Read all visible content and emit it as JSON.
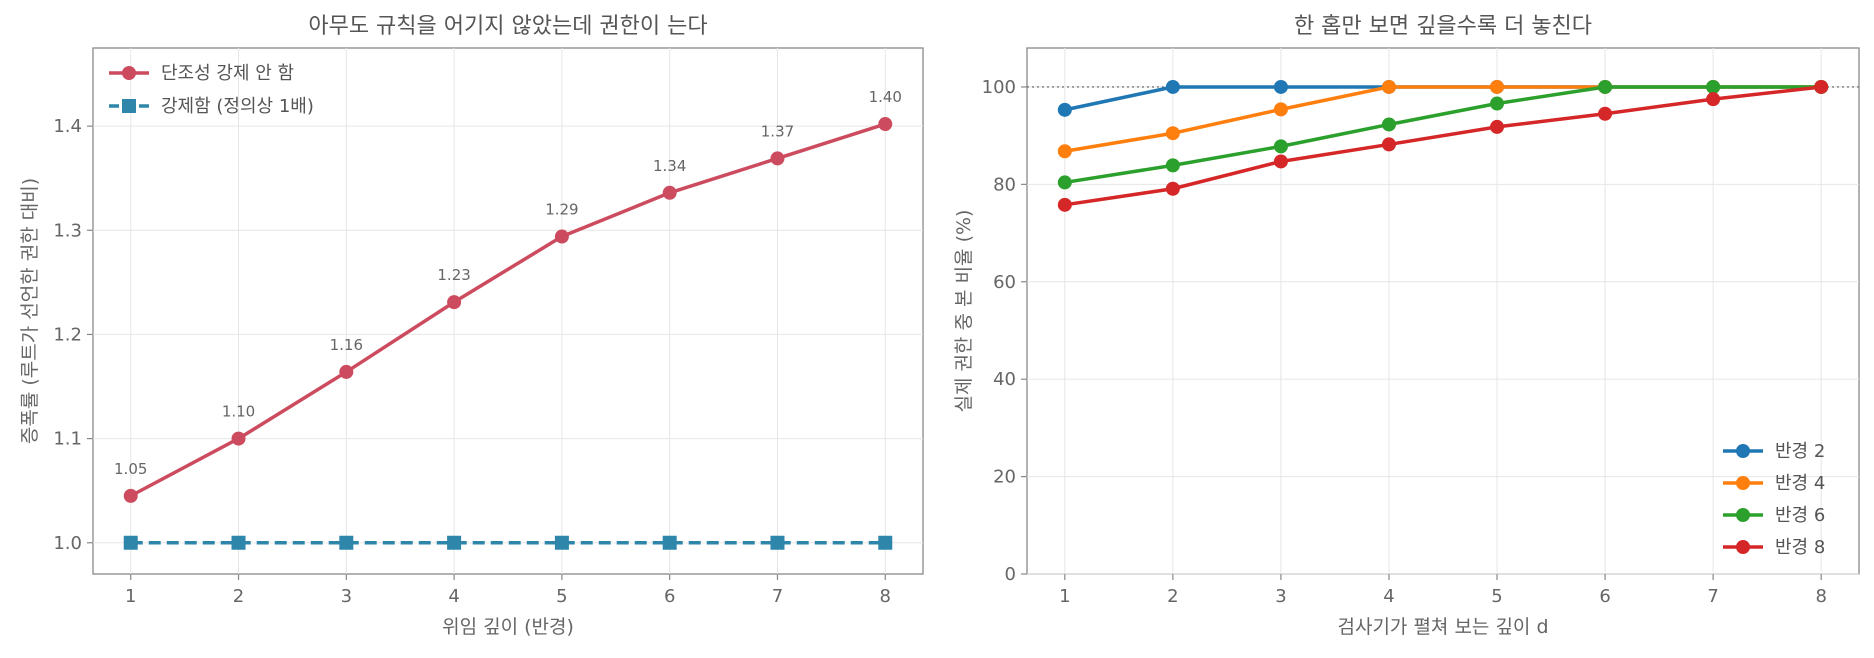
{
  "chart_data": [
    {
      "type": "line",
      "title": "아무도 규칙을 어기지 않았는데 권한이 는다",
      "xlabel": "위임 깊이 (반경)",
      "ylabel": "증폭률 (루트가 선언한 권한 대비)",
      "x": [
        1,
        2,
        3,
        4,
        5,
        6,
        7,
        8
      ],
      "xlim": [
        0.65,
        8.35
      ],
      "ylim": [
        0.97,
        1.475
      ],
      "yticks": [
        "1.0",
        "1.1",
        "1.2",
        "1.3",
        "1.4"
      ],
      "grid": true,
      "legend_position": "top-left",
      "series": [
        {
          "name": "단조성 강제 안 함",
          "values": [
            1.045,
            1.1,
            1.164,
            1.231,
            1.294,
            1.336,
            1.369,
            1.402
          ],
          "data_labels": [
            "1.05",
            "1.10",
            "1.16",
            "1.23",
            "1.29",
            "1.34",
            "1.37",
            "1.40"
          ],
          "color": "#cc4b5e",
          "marker": "circle",
          "dash": false
        },
        {
          "name": "강제함 (정의상 1배)",
          "values": [
            1.0,
            1.0,
            1.0,
            1.0,
            1.0,
            1.0,
            1.0,
            1.0
          ],
          "color": "#2e86ab",
          "marker": "square",
          "dash": true
        }
      ]
    },
    {
      "type": "line",
      "title": "한 홉만 보면 깊을수록 더 놓친다",
      "xlabel": "검사기가 펼쳐 보는 깊이 d",
      "ylabel": "실제 권한 중 본 비율 (%)",
      "x": [
        1,
        2,
        3,
        4,
        5,
        6,
        7,
        8
      ],
      "xlim": [
        0.65,
        8.35
      ],
      "ylim": [
        0,
        108
      ],
      "yticks": [
        "0",
        "20",
        "40",
        "60",
        "80",
        "100"
      ],
      "reference_line": 100,
      "grid": true,
      "legend_position": "bottom-right",
      "series": [
        {
          "name": "반경 2",
          "values": [
            95.3,
            100,
            100,
            100,
            100,
            100,
            100,
            100
          ],
          "color": "#1f77b4"
        },
        {
          "name": "반경 4",
          "values": [
            86.8,
            90.5,
            95.4,
            100,
            100,
            100,
            100,
            100
          ],
          "color": "#ff7f0e"
        },
        {
          "name": "반경 6",
          "values": [
            80.4,
            83.9,
            87.8,
            92.3,
            96.6,
            100,
            100,
            100
          ],
          "color": "#2ca02c"
        },
        {
          "name": "반경 8",
          "values": [
            75.8,
            79.1,
            84.7,
            88.2,
            91.8,
            94.5,
            97.5,
            100
          ],
          "color": "#d62728"
        }
      ]
    }
  ]
}
